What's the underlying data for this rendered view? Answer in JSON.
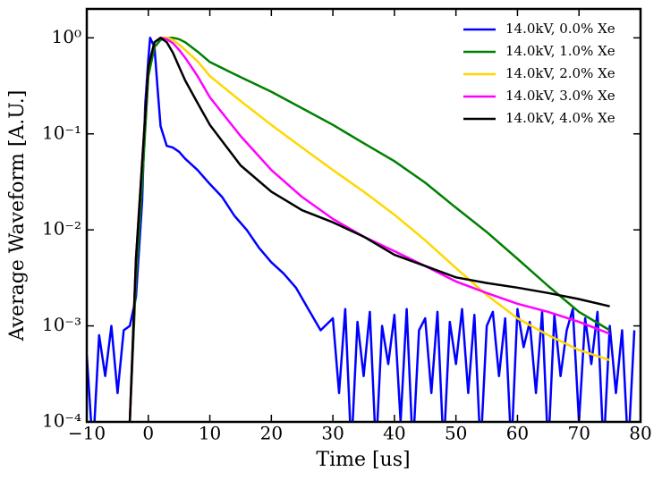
{
  "chart_data": {
    "type": "line",
    "xlabel": "Time [us]",
    "ylabel": "Average Waveform [A.U.]",
    "xlim": [
      -10,
      80
    ],
    "ylim": [
      0.0001,
      2
    ],
    "log_y": true,
    "legend": "upper right",
    "xticks": [
      {
        "value": -10,
        "label": "−10"
      },
      0,
      10,
      20,
      30,
      40,
      50,
      60,
      70,
      80
    ],
    "yticks": [
      {
        "value": 0.0001,
        "label": "10⁻⁴"
      },
      {
        "value": 0.001,
        "label": "10⁻³"
      },
      {
        "value": 0.01,
        "label": "10⁻²"
      },
      {
        "value": 0.1,
        "label": "10⁻¹"
      },
      {
        "value": 1,
        "label": "10⁰"
      }
    ],
    "series": [
      {
        "name": "14.0kV, 0.0% Xe",
        "color": "#0000ff",
        "x": [
          -10,
          -9,
          -8,
          -7,
          -6,
          -5,
          -4,
          -3,
          -2,
          -1,
          -0.5,
          0,
          0.3,
          1,
          1.5,
          2,
          3,
          4,
          5,
          6,
          8,
          10,
          12,
          14,
          16,
          18,
          20,
          22,
          24,
          26,
          28,
          30,
          31,
          32,
          33,
          34,
          35,
          36,
          37,
          38,
          39,
          40,
          41,
          42,
          43,
          44,
          45,
          46,
          47,
          48,
          49,
          50,
          51,
          52,
          53,
          54,
          55,
          56,
          57,
          58,
          59,
          60,
          61,
          62,
          63,
          64,
          65,
          66,
          67,
          68,
          69,
          70,
          71,
          72,
          73,
          74,
          75,
          76,
          77,
          78,
          79
        ],
        "values": [
          0.0005,
          5e-05,
          0.0008,
          0.0003,
          0.001,
          0.0002,
          0.0009,
          0.001,
          0.002,
          0.02,
          0.2,
          0.6,
          1.0,
          0.8,
          0.3,
          0.12,
          0.075,
          0.072,
          0.065,
          0.055,
          0.042,
          0.03,
          0.022,
          0.014,
          0.01,
          0.0065,
          0.0046,
          0.0035,
          0.0025,
          0.0015,
          0.0009,
          0.0012,
          0.0002,
          0.0015,
          5e-05,
          0.0011,
          0.0003,
          0.0014,
          5e-05,
          0.001,
          0.0004,
          0.0013,
          0.0001,
          0.0015,
          5e-05,
          0.0009,
          0.0012,
          0.0002,
          0.0014,
          5e-05,
          0.0011,
          0.0004,
          0.0015,
          0.0002,
          0.0013,
          5e-05,
          0.001,
          0.0014,
          0.0003,
          0.0012,
          5e-05,
          0.0015,
          0.0006,
          0.0011,
          0.0002,
          0.0014,
          5e-05,
          0.0013,
          0.0003,
          0.0009,
          0.0015,
          0.0001,
          0.0012,
          0.0004,
          0.0014,
          5e-05,
          0.001,
          0.0002,
          0.0009,
          5e-05,
          0.0009
        ]
      },
      {
        "name": "14.0kV, 1.0% Xe",
        "color": "#008000",
        "x": [
          -3,
          -2,
          -1,
          0,
          1,
          2,
          3,
          4,
          5,
          6,
          8,
          10,
          15,
          20,
          25,
          30,
          35,
          40,
          45,
          50,
          55,
          60,
          65,
          70,
          75
        ],
        "values": [
          0.0001,
          0.003,
          0.03,
          0.4,
          0.8,
          0.95,
          0.99,
          1.0,
          0.97,
          0.9,
          0.72,
          0.56,
          0.39,
          0.275,
          0.185,
          0.124,
          0.08,
          0.052,
          0.031,
          0.017,
          0.0095,
          0.005,
          0.0026,
          0.0014,
          0.0009
        ]
      },
      {
        "name": "14.0kV, 2.0% Xe",
        "color": "#ffd700",
        "x": [
          -3,
          -2,
          -1,
          0,
          1,
          2,
          3,
          4,
          5,
          6,
          8,
          10,
          15,
          20,
          25,
          30,
          35,
          40,
          45,
          50,
          55,
          60,
          65,
          70,
          75
        ],
        "values": [
          0.0001,
          0.005,
          0.05,
          0.5,
          0.9,
          1.0,
          1.0,
          0.95,
          0.85,
          0.75,
          0.57,
          0.4,
          0.22,
          0.124,
          0.072,
          0.042,
          0.025,
          0.0144,
          0.0078,
          0.004,
          0.0021,
          0.0012,
          0.0008,
          0.00056,
          0.00044
        ]
      },
      {
        "name": "14.0kV, 3.0% Xe",
        "color": "#ff00ff",
        "x": [
          -3,
          -2,
          -1,
          0,
          1,
          2,
          3,
          4,
          5,
          6,
          8,
          10,
          15,
          20,
          25,
          30,
          35,
          40,
          45,
          50,
          55,
          60,
          65,
          70,
          75
        ],
        "values": [
          0.0001,
          0.005,
          0.05,
          0.5,
          0.9,
          1.0,
          0.97,
          0.88,
          0.75,
          0.62,
          0.4,
          0.24,
          0.095,
          0.042,
          0.022,
          0.013,
          0.0085,
          0.006,
          0.0042,
          0.0029,
          0.0022,
          0.0017,
          0.0014,
          0.0011,
          0.00083
        ]
      },
      {
        "name": "14.0kV, 4.0% Xe",
        "color": "#000000",
        "x": [
          -3,
          -2,
          -1,
          0,
          1,
          2,
          3,
          4,
          5,
          6,
          8,
          10,
          15,
          20,
          25,
          30,
          35,
          40,
          45,
          50,
          55,
          60,
          65,
          70,
          75
        ],
        "values": [
          0.0001,
          0.005,
          0.05,
          0.5,
          0.9,
          1.0,
          0.9,
          0.7,
          0.5,
          0.36,
          0.21,
          0.124,
          0.047,
          0.025,
          0.016,
          0.012,
          0.0085,
          0.0055,
          0.0042,
          0.0032,
          0.0028,
          0.0025,
          0.0022,
          0.0019,
          0.0016
        ]
      }
    ]
  }
}
